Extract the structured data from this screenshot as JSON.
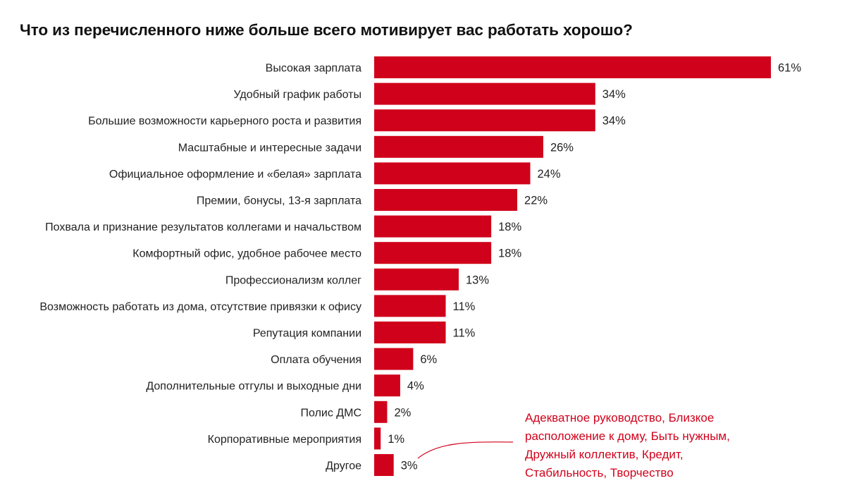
{
  "chart_data": {
    "type": "bar",
    "orientation": "horizontal",
    "title": "Что из перечисленного ниже больше всего мотивирует вас работать хорошо?",
    "xlabel": "",
    "ylabel": "",
    "xlim": [
      0,
      61
    ],
    "grid": false,
    "value_suffix": "%",
    "bar_color": "#d0021b",
    "categories": [
      "Высокая зарплата",
      "Удобный график работы",
      "Большие возможности карьерного роста и развития",
      "Масштабные и интересные задачи",
      "Официальное оформление и «белая» зарплата",
      "Премии, бонусы, 13-я зарплата",
      "Похвала и признание результатов коллегами и начальством",
      "Комфортный офис, удобное рабочее место",
      "Профессионализм коллег",
      "Возможность работать из дома, отсутствие привязки к офису",
      "Репутация компании",
      "Оплата обучения",
      "Дополнительные отгулы и выходные дни",
      "Полис ДМС",
      "Корпоративные мероприятия",
      "Другое"
    ],
    "values": [
      61,
      34,
      34,
      26,
      24,
      22,
      18,
      18,
      13,
      11,
      11,
      6,
      4,
      2,
      1,
      3
    ],
    "value_labels": [
      "61%",
      "34%",
      "34%",
      "26%",
      "24%",
      "22%",
      "18%",
      "18%",
      "13%",
      "11%",
      "11%",
      "6%",
      "4%",
      "2%",
      "1%",
      "3%"
    ],
    "annotation": {
      "target": "Другое",
      "text": "Адекватное руководство, Близкое расположение к дому, Быть нужным, Дружный коллектив, Кредит, Стабильность, Творчество",
      "color": "#d0021b"
    }
  }
}
